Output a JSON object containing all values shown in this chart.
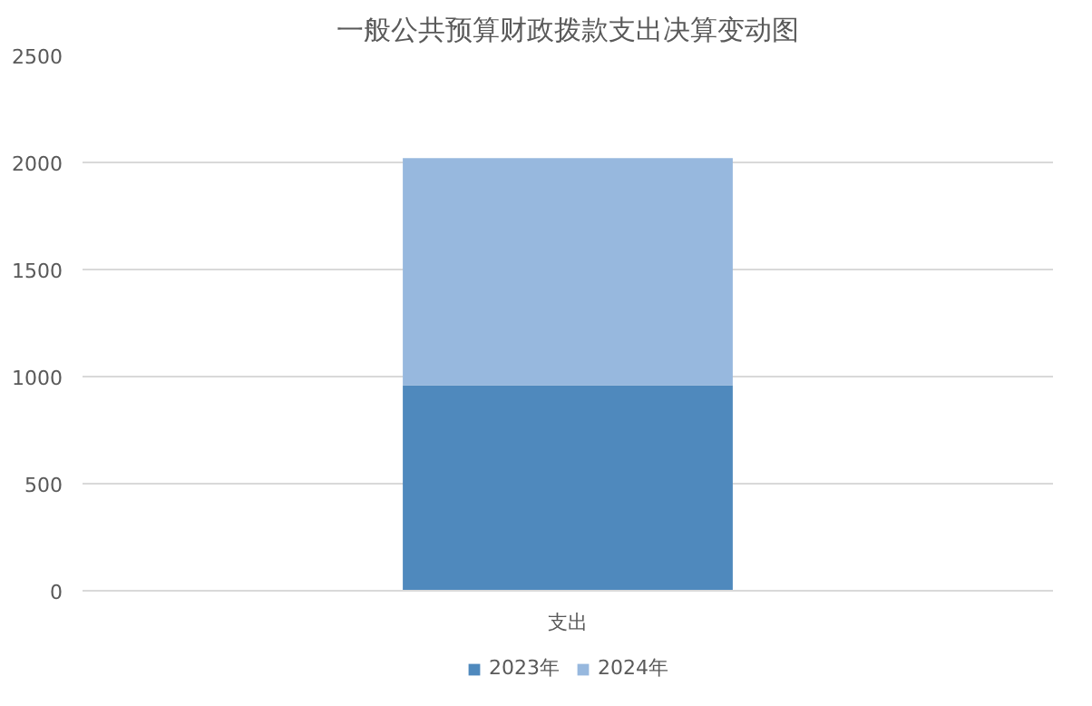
{
  "chart_data": {
    "type": "bar",
    "title": "一般公共预算财政拨款支出决算变动图",
    "categories": [
      "支出"
    ],
    "stacked": true,
    "series": [
      {
        "name": "2023年",
        "color": "#4f89bd",
        "values": [
          960
        ]
      },
      {
        "name": "2024年",
        "color": "#97b8de",
        "values": [
          1060
        ]
      }
    ],
    "ylim": [
      0,
      2500
    ],
    "yticks": [
      0,
      500,
      1000,
      1500,
      2000,
      2500
    ],
    "grid": "y",
    "legend": "bottom"
  }
}
